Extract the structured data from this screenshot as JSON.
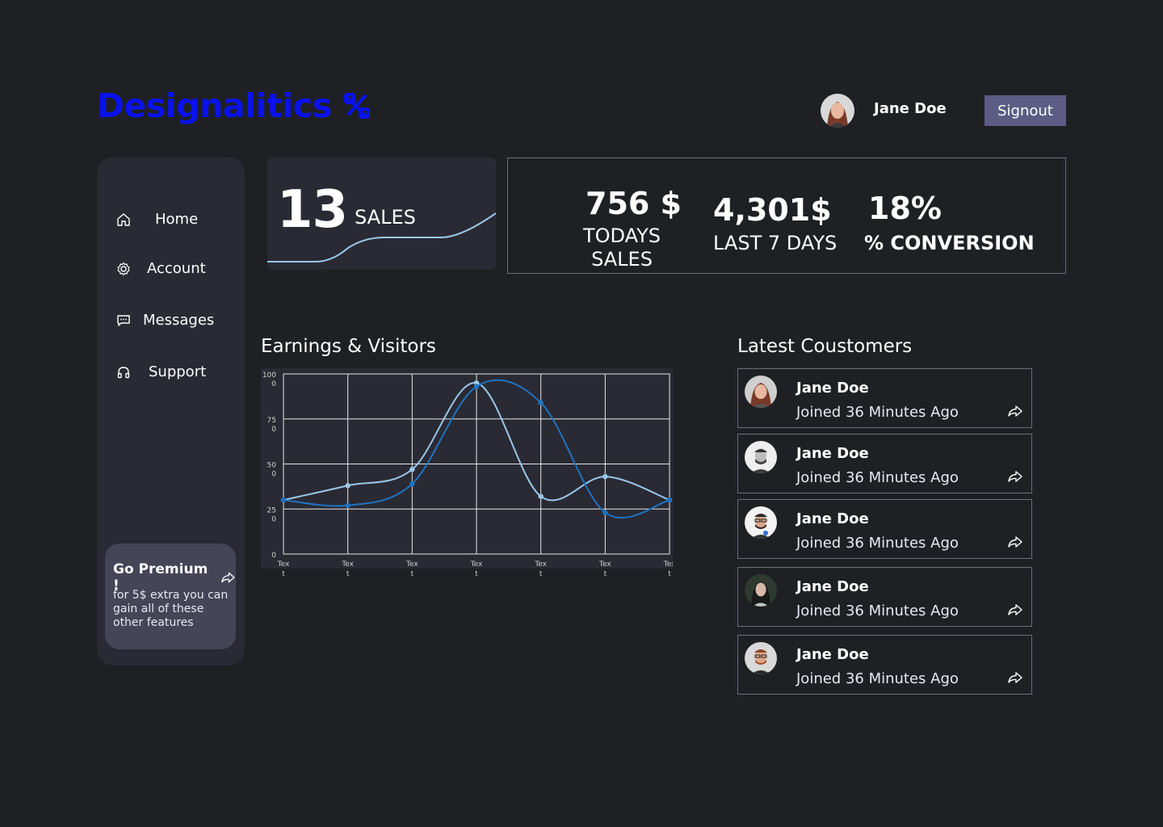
{
  "header": {
    "brand": "Designalitics",
    "user_name": "Jane Doe",
    "signout_label": "Signout"
  },
  "sidebar": {
    "items": [
      {
        "label": "Home",
        "icon": "home-icon"
      },
      {
        "label": "Account",
        "icon": "gear-icon"
      },
      {
        "label": "Messages",
        "icon": "chat-icon"
      },
      {
        "label": "Support",
        "icon": "headphones-icon"
      }
    ],
    "premium": {
      "title": "Go Premium !",
      "text": "for 5$ extra you can gain all of these other features"
    }
  },
  "sales_card": {
    "value": "13",
    "label": "SALES"
  },
  "stats": {
    "today": {
      "value": "756 $",
      "label": "TODAYS SALES"
    },
    "week": {
      "value": "4,301$",
      "label": "LAST 7 DAYS"
    },
    "conversion": {
      "value": "18%",
      "label": "% CONVERSION"
    }
  },
  "earnings": {
    "title": "Earnings & Visitors"
  },
  "customers": {
    "title": "Latest Coustomers",
    "items": [
      {
        "name": "Jane Doe",
        "joined": "Joined 36 Minutes Ago"
      },
      {
        "name": "Jane Doe",
        "joined": "Joined 36 Minutes Ago"
      },
      {
        "name": "Jane Doe",
        "joined": "Joined 36 Minutes Ago"
      },
      {
        "name": "Jane Doe",
        "joined": "Joined 36 Minutes Ago"
      },
      {
        "name": "Jane Doe",
        "joined": "Joined 36 Minutes Ago"
      }
    ]
  },
  "colors": {
    "brand": "#0a12ee",
    "background": "#1f2024",
    "panel": "#2a2a35",
    "button": "#5c5c85",
    "series_light": "#9ac8e8",
    "series_dark": "#1e73c0"
  },
  "chart_data": {
    "type": "line",
    "categories": [
      "Text",
      "Text",
      "Text",
      "Text",
      "Text",
      "Text",
      "Text"
    ],
    "y_tick_labels": [
      "0",
      "25\n0",
      "50\n0",
      "75\n0",
      "100\n0"
    ],
    "y_ticks": [
      0,
      250,
      500,
      750,
      1000
    ],
    "ylim": [
      0,
      1000
    ],
    "grid": true,
    "series": [
      {
        "values": [
          300,
          380,
          470,
          950,
          320,
          430,
          300
        ]
      },
      {
        "values": [
          300,
          270,
          390,
          930,
          840,
          230,
          300
        ]
      }
    ]
  }
}
